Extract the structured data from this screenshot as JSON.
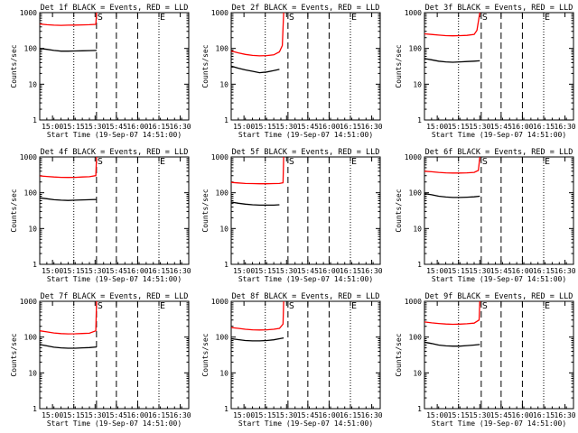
{
  "figure": {
    "background": "#ffffff",
    "axis_color": "#000000",
    "events_color": "#000000",
    "lld_color": "#ff0000"
  },
  "chart_data": [
    {
      "type": "line",
      "title": "Det 1f BLACK = Events, RED = LLD",
      "xlabel": "Start Time (19-Sep-07 14:51:00)",
      "ylabel": "Counts/sec",
      "x_unit": "minutes since 14:51:00",
      "xlim": [
        0,
        105
      ],
      "ylim": [
        1,
        1000
      ],
      "y_scale": "log",
      "x_tick_labels": [
        "15:00",
        "15:15",
        "15:30",
        "15:45",
        "16:00",
        "16:15",
        "16:30"
      ],
      "y_tick_labels": [
        "1",
        "10",
        "100",
        "1000"
      ],
      "dotted_lines": [
        "15:15",
        "16:15"
      ],
      "dashed_lines": [
        "15:31",
        "15:45",
        "16:00"
      ],
      "markers": [
        {
          "text": "S",
          "at": "15:31"
        },
        {
          "text": "E",
          "at": "16:15"
        }
      ],
      "series": [
        {
          "color": "#ff0000",
          "x": [
            0,
            5,
            10,
            15,
            20,
            25,
            30,
            35,
            39.5,
            40
          ],
          "values": [
            480,
            460,
            445,
            440,
            445,
            448,
            455,
            460,
            470,
            1000
          ]
        },
        {
          "color": "#000000",
          "x": [
            0,
            5,
            10,
            15,
            20,
            25,
            30,
            35,
            40
          ],
          "values": [
            100,
            94,
            88,
            84,
            84,
            85,
            86,
            87,
            88
          ]
        }
      ]
    },
    {
      "type": "line",
      "title": "Det 2f BLACK = Events, RED = LLD",
      "xlabel": "Start Time (19-Sep-07 14:51:00)",
      "ylabel": "Counts/sec",
      "x_unit": "minutes since 14:51:00",
      "xlim": [
        0,
        105
      ],
      "ylim": [
        1,
        1000
      ],
      "y_scale": "log",
      "x_tick_labels": [
        "15:00",
        "15:15",
        "15:30",
        "15:45",
        "16:00",
        "16:15",
        "16:30"
      ],
      "y_tick_labels": [
        "1",
        "10",
        "100",
        "1000"
      ],
      "dotted_lines": [
        "15:15",
        "16:15"
      ],
      "dashed_lines": [
        "15:31",
        "15:45",
        "16:00"
      ],
      "markers": [
        {
          "text": "S",
          "at": "15:31"
        },
        {
          "text": "E",
          "at": "16:15"
        }
      ],
      "series": [
        {
          "color": "#ff0000",
          "x": [
            0,
            5,
            10,
            15,
            20,
            25,
            30,
            34,
            36,
            37
          ],
          "values": [
            85,
            75,
            68,
            64,
            62,
            63,
            66,
            80,
            120,
            1000
          ]
        },
        {
          "color": "#000000",
          "x": [
            0,
            5,
            10,
            15,
            20,
            25,
            30,
            34
          ],
          "values": [
            32,
            28,
            25,
            23,
            21,
            22,
            24,
            26
          ]
        }
      ]
    },
    {
      "type": "line",
      "title": "Det 3f BLACK = Events, RED = LLD",
      "xlabel": "Start Time (19-Sep-07 14:51:00)",
      "ylabel": "Counts/sec",
      "x_unit": "minutes since 14:51:00",
      "xlim": [
        0,
        105
      ],
      "ylim": [
        1,
        1000
      ],
      "y_scale": "log",
      "x_tick_labels": [
        "15:00",
        "15:15",
        "15:30",
        "15:45",
        "16:00",
        "16:15",
        "16:30"
      ],
      "y_tick_labels": [
        "1",
        "10",
        "100",
        "1000"
      ],
      "dotted_lines": [
        "15:15",
        "16:15"
      ],
      "dashed_lines": [
        "15:31",
        "15:45",
        "16:00"
      ],
      "markers": [
        {
          "text": "S",
          "at": "15:31"
        },
        {
          "text": "E",
          "at": "16:15"
        }
      ],
      "series": [
        {
          "color": "#ff0000",
          "x": [
            0,
            5,
            10,
            15,
            20,
            25,
            30,
            35,
            37,
            39
          ],
          "values": [
            255,
            245,
            235,
            228,
            225,
            227,
            232,
            245,
            320,
            1000
          ]
        },
        {
          "color": "#000000",
          "x": [
            0,
            5,
            10,
            15,
            20,
            25,
            30,
            35,
            39
          ],
          "values": [
            52,
            48,
            44,
            42,
            41,
            42,
            43,
            44,
            45
          ]
        }
      ]
    },
    {
      "type": "line",
      "title": "Det 4f BLACK = Events, RED = LLD",
      "xlabel": "Start Time (19-Sep-07 14:51:00)",
      "ylabel": "Counts/sec",
      "x_unit": "minutes since 14:51:00",
      "xlim": [
        0,
        105
      ],
      "ylim": [
        1,
        1000
      ],
      "y_scale": "log",
      "x_tick_labels": [
        "15:00",
        "15:15",
        "15:30",
        "15:45",
        "16:00",
        "16:15",
        "16:30"
      ],
      "y_tick_labels": [
        "1",
        "10",
        "100",
        "1000"
      ],
      "dotted_lines": [
        "15:15",
        "16:15"
      ],
      "dashed_lines": [
        "15:31",
        "15:45",
        "16:00"
      ],
      "markers": [
        {
          "text": "S",
          "at": "15:31"
        },
        {
          "text": "E",
          "at": "16:15"
        }
      ],
      "series": [
        {
          "color": "#ff0000",
          "x": [
            0,
            5,
            10,
            15,
            20,
            25,
            30,
            35,
            39.5,
            40
          ],
          "values": [
            295,
            285,
            275,
            270,
            268,
            270,
            275,
            280,
            300,
            1000
          ]
        },
        {
          "color": "#000000",
          "x": [
            0,
            5,
            10,
            15,
            20,
            25,
            30,
            35,
            40
          ],
          "values": [
            72,
            68,
            64,
            62,
            61,
            62,
            63,
            64,
            65
          ]
        }
      ]
    },
    {
      "type": "line",
      "title": "Det 5f BLACK = Events, RED = LLD",
      "xlabel": "Start Time (19-Sep-07 14:51:00)",
      "ylabel": "Counts/sec",
      "x_unit": "minutes since 14:51:00",
      "xlim": [
        0,
        105
      ],
      "ylim": [
        1,
        1000
      ],
      "y_scale": "log",
      "x_tick_labels": [
        "15:00",
        "15:15",
        "15:30",
        "15:45",
        "16:00",
        "16:15",
        "16:30"
      ],
      "y_tick_labels": [
        "1",
        "10",
        "100",
        "1000"
      ],
      "dotted_lines": [
        "15:15",
        "16:15"
      ],
      "dashed_lines": [
        "15:31",
        "15:45",
        "16:00"
      ],
      "markers": [
        {
          "text": "S",
          "at": "15:31"
        },
        {
          "text": "E",
          "at": "16:15"
        }
      ],
      "series": [
        {
          "color": "#ff0000",
          "x": [
            0,
            5,
            10,
            15,
            20,
            25,
            30,
            34,
            36.5,
            37
          ],
          "values": [
            195,
            188,
            182,
            180,
            178,
            178,
            180,
            182,
            190,
            1000
          ]
        },
        {
          "color": "#000000",
          "x": [
            0,
            5,
            10,
            15,
            20,
            25,
            30,
            34
          ],
          "values": [
            55,
            51,
            48,
            46,
            45,
            45,
            45,
            46
          ]
        }
      ]
    },
    {
      "type": "line",
      "title": "Det 6f BLACK = Events, RED = LLD",
      "xlabel": "Start Time (19-Sep-07 14:51:00)",
      "ylabel": "Counts/sec",
      "x_unit": "minutes since 14:51:00",
      "xlim": [
        0,
        105
      ],
      "ylim": [
        1,
        1000
      ],
      "y_scale": "log",
      "x_tick_labels": [
        "15:00",
        "15:15",
        "15:30",
        "15:45",
        "16:00",
        "16:15",
        "16:30"
      ],
      "y_tick_labels": [
        "1",
        "10",
        "100",
        "1000"
      ],
      "dotted_lines": [
        "15:15",
        "16:15"
      ],
      "dashed_lines": [
        "15:31",
        "15:45",
        "16:00"
      ],
      "markers": [
        {
          "text": "S",
          "at": "15:31"
        },
        {
          "text": "E",
          "at": "16:15"
        }
      ],
      "series": [
        {
          "color": "#ff0000",
          "x": [
            0,
            5,
            10,
            15,
            20,
            25,
            30,
            35,
            38,
            39
          ],
          "values": [
            400,
            385,
            370,
            360,
            355,
            356,
            360,
            370,
            420,
            1000
          ]
        },
        {
          "color": "#000000",
          "x": [
            0,
            5,
            10,
            15,
            20,
            25,
            30,
            35,
            39
          ],
          "values": [
            95,
            88,
            80,
            76,
            74,
            74,
            75,
            77,
            80
          ]
        }
      ]
    },
    {
      "type": "line",
      "title": "Det 7f BLACK = Events, RED = LLD",
      "xlabel": "Start Time (19-Sep-07 14:51:00)",
      "ylabel": "Counts/sec",
      "x_unit": "minutes since 14:51:00",
      "xlim": [
        0,
        105
      ],
      "ylim": [
        1,
        1000
      ],
      "y_scale": "log",
      "x_tick_labels": [
        "15:00",
        "15:15",
        "15:30",
        "15:45",
        "16:00",
        "16:15",
        "16:30"
      ],
      "y_tick_labels": [
        "1",
        "10",
        "100",
        "1000"
      ],
      "dotted_lines": [
        "15:15",
        "16:15"
      ],
      "dashed_lines": [
        "15:31",
        "15:45",
        "16:00"
      ],
      "markers": [
        {
          "text": "S",
          "at": "15:31"
        },
        {
          "text": "E",
          "at": "16:15"
        }
      ],
      "series": [
        {
          "color": "#ff0000",
          "x": [
            0,
            5,
            10,
            15,
            20,
            25,
            30,
            35,
            39.5,
            40
          ],
          "values": [
            150,
            140,
            130,
            125,
            123,
            124,
            126,
            128,
            150,
            1000
          ]
        },
        {
          "color": "#000000",
          "x": [
            0,
            5,
            10,
            15,
            20,
            25,
            30,
            35,
            40
          ],
          "values": [
            62,
            57,
            52,
            50,
            49,
            49,
            50,
            51,
            53
          ]
        }
      ]
    },
    {
      "type": "line",
      "title": "Det 8f BLACK = Events, RED = LLD",
      "xlabel": "Start Time (19-Sep-07 14:51:00)",
      "ylabel": "Counts/sec",
      "x_unit": "minutes since 14:51:00",
      "xlim": [
        0,
        105
      ],
      "ylim": [
        1,
        1000
      ],
      "y_scale": "log",
      "x_tick_labels": [
        "15:00",
        "15:15",
        "15:30",
        "15:45",
        "16:00",
        "16:15",
        "16:30"
      ],
      "y_tick_labels": [
        "1",
        "10",
        "100",
        "1000"
      ],
      "dotted_lines": [
        "15:15",
        "16:15"
      ],
      "dashed_lines": [
        "15:31",
        "15:45",
        "16:00"
      ],
      "markers": [
        {
          "text": "S",
          "at": "15:31"
        },
        {
          "text": "E",
          "at": "16:15"
        }
      ],
      "series": [
        {
          "color": "#ff0000",
          "x": [
            0,
            5,
            10,
            15,
            20,
            25,
            30,
            34,
            36.5,
            37
          ],
          "values": [
            185,
            175,
            165,
            160,
            158,
            160,
            165,
            175,
            230,
            1000
          ]
        },
        {
          "color": "#000000",
          "x": [
            0,
            5,
            10,
            15,
            20,
            25,
            30,
            34,
            37
          ],
          "values": [
            90,
            85,
            80,
            78,
            78,
            80,
            84,
            90,
            95
          ]
        }
      ]
    },
    {
      "type": "line",
      "title": "Det 9f BLACK = Events, RED = LLD",
      "xlabel": "Start Time (19-Sep-07 14:51:00)",
      "ylabel": "Counts/sec",
      "x_unit": "minutes since 14:51:00",
      "xlim": [
        0,
        105
      ],
      "ylim": [
        1,
        1000
      ],
      "y_scale": "log",
      "x_tick_labels": [
        "15:00",
        "15:15",
        "15:30",
        "15:45",
        "16:00",
        "16:15",
        "16:30"
      ],
      "y_tick_labels": [
        "1",
        "10",
        "100",
        "1000"
      ],
      "dotted_lines": [
        "15:15",
        "16:15"
      ],
      "dashed_lines": [
        "15:31",
        "15:45",
        "16:00"
      ],
      "markers": [
        {
          "text": "S",
          "at": "15:31"
        },
        {
          "text": "E",
          "at": "16:15"
        }
      ],
      "series": [
        {
          "color": "#ff0000",
          "x": [
            0,
            5,
            10,
            15,
            20,
            25,
            30,
            35,
            38.5,
            39
          ],
          "values": [
            265,
            250,
            240,
            232,
            228,
            230,
            235,
            245,
            300,
            1000
          ]
        },
        {
          "color": "#000000",
          "x": [
            0,
            5,
            10,
            15,
            20,
            25,
            30,
            35,
            39
          ],
          "values": [
            72,
            66,
            60,
            57,
            56,
            56,
            58,
            60,
            62
          ]
        }
      ]
    }
  ]
}
